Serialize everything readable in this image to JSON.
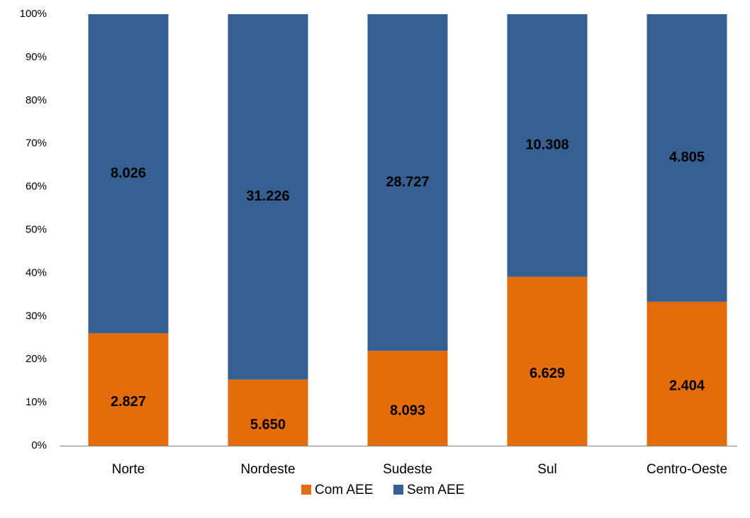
{
  "chart_data": {
    "type": "bar",
    "stacking": "percent",
    "categories": [
      "Norte",
      "Nordeste",
      "Sudeste",
      "Sul",
      "Centro-Oeste"
    ],
    "series": [
      {
        "name": "Com AEE",
        "color": "#e46c0a",
        "values": [
          2827,
          5650,
          8093,
          6629,
          2404
        ],
        "value_labels": [
          "2.827",
          "5.650",
          "8.093",
          "6.629",
          "2.404"
        ]
      },
      {
        "name": "Sem AEE",
        "color": "#376092",
        "values": [
          8026,
          31226,
          28727,
          10308,
          4805
        ],
        "value_labels": [
          "8.026",
          "31.226",
          "28.727",
          "10.308",
          "4.805"
        ]
      }
    ],
    "ylim": [
      0,
      100
    ],
    "yticks": [
      {
        "value": 0,
        "label": "0%"
      },
      {
        "value": 10,
        "label": "10%"
      },
      {
        "value": 20,
        "label": "20%"
      },
      {
        "value": 30,
        "label": "30%"
      },
      {
        "value": 40,
        "label": "40%"
      },
      {
        "value": 50,
        "label": "50%"
      },
      {
        "value": 60,
        "label": "60%"
      },
      {
        "value": 70,
        "label": "70%"
      },
      {
        "value": 80,
        "label": "80%"
      },
      {
        "value": 90,
        "label": "90%"
      },
      {
        "value": 100,
        "label": "100%"
      }
    ],
    "legend": "bottom"
  }
}
